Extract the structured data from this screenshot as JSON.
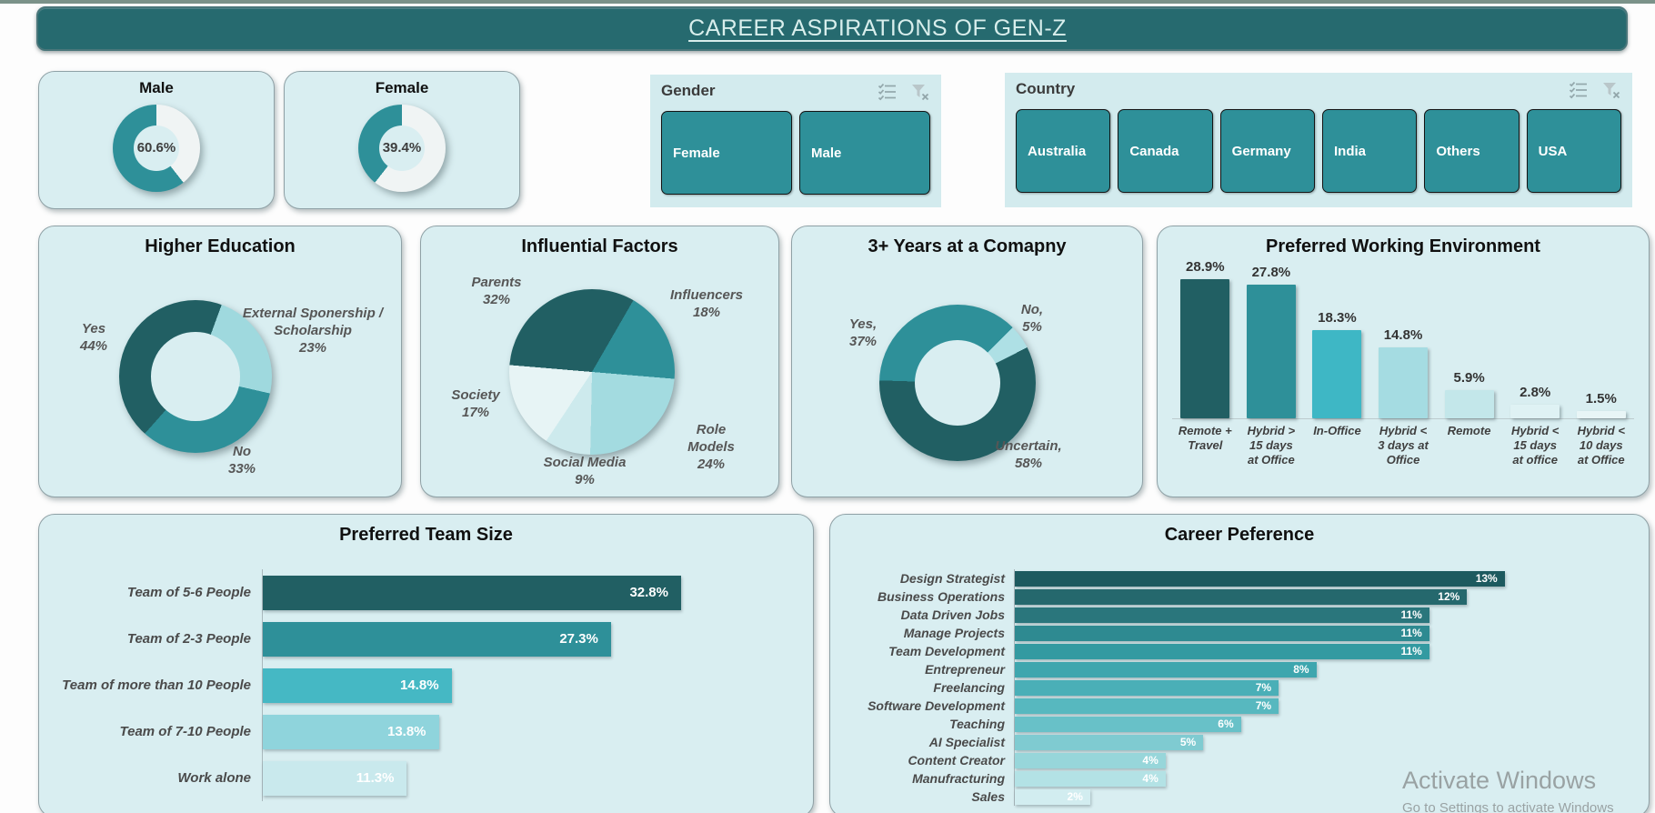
{
  "header": {
    "title": "CAREER ASPIRATIONS OF GEN-Z"
  },
  "colors": {
    "banner": "#266a6f",
    "card_bg": "#d9eef1",
    "slicer_bg": "#d3ebee",
    "button_teal": "#2e9099",
    "dark_teal": "#215f63",
    "cyan": "#3eb7c5",
    "light_teal": "#a5dce2"
  },
  "slicers": {
    "gender": {
      "label": "Gender",
      "items": [
        "Female",
        "Male"
      ],
      "icons": [
        "multi-select",
        "clear-filter"
      ]
    },
    "country": {
      "label": "Country",
      "items": [
        "Australia",
        "Canada",
        "Germany",
        "India",
        "Others",
        "USA"
      ],
      "icons": [
        "multi-select",
        "clear-filter"
      ]
    }
  },
  "watermark": {
    "line1": "Activate Windows",
    "line2": "Go to Settings to activate Windows"
  },
  "chart_data": [
    {
      "id": "male-gauge",
      "type": "donut",
      "title": "Male",
      "center_label": "60.6%",
      "hole": 0.53,
      "start": 0,
      "segments": [
        {
          "name": "Remainder",
          "value": 39.4,
          "color": "#f0f4f4"
        },
        {
          "name": "Male",
          "value": 60.6,
          "color": "#2e9099"
        }
      ]
    },
    {
      "id": "female-gauge",
      "type": "donut",
      "title": "Female",
      "center_label": "39.4%",
      "hole": 0.53,
      "start": 0,
      "segments": [
        {
          "name": "Remainder",
          "value": 60.6,
          "color": "#f0f4f4"
        },
        {
          "name": "Female",
          "value": 39.4,
          "color": "#2e9099"
        }
      ]
    },
    {
      "id": "higher-education",
      "type": "donut",
      "title": "Higher Education",
      "hole": 0.58,
      "start": 20,
      "segments": [
        {
          "name": "External Sponership / Scholarship",
          "value": 23,
          "color": "#9fd9de"
        },
        {
          "name": "No",
          "value": 33,
          "color": "#2e9099"
        },
        {
          "name": "Yes",
          "value": 44,
          "color": "#215f63"
        }
      ],
      "labels": [
        "Yes\n44%",
        "External Sponership /\nScholarship\n23%",
        "No\n33%"
      ]
    },
    {
      "id": "influential-factors",
      "type": "pie",
      "title": "Influential Factors",
      "start": 30,
      "segments": [
        {
          "name": "Influencers",
          "value": 18,
          "color": "#2e9099"
        },
        {
          "name": "Role Models",
          "value": 24,
          "color": "#a3dbe0"
        },
        {
          "name": "Social Media",
          "value": 9,
          "color": "#cdeaed"
        },
        {
          "name": "Society",
          "value": 17,
          "color": "#e7f4f5"
        },
        {
          "name": "Parents",
          "value": 32,
          "color": "#215f63"
        }
      ],
      "labels": [
        "Parents\n32%",
        "Influencers\n18%",
        "Society\n17%",
        "Social Media\n9%",
        "Role\nModels\n24%"
      ]
    },
    {
      "id": "three-years-at-company",
      "type": "donut",
      "title": "3+ Years at a Comapny",
      "hole": 0.55,
      "start": 45,
      "segments": [
        {
          "name": "No",
          "value": 5,
          "color": "#aee0e5"
        },
        {
          "name": "Uncertain",
          "value": 58,
          "color": "#215f63"
        },
        {
          "name": "Yes",
          "value": 37,
          "color": "#2e9099"
        }
      ],
      "labels": [
        "Yes,\n37%",
        "No,\n5%",
        "Uncertain,\n58%"
      ]
    },
    {
      "id": "preferred-working-environment",
      "type": "column",
      "title": "Preferred Working Environment",
      "ylim": [
        0,
        30
      ],
      "grid": false,
      "categories": [
        "Remote +\nTravel",
        "Hybrid >\n15 days\nat Office",
        "In-Office",
        "Hybrid <\n3 days at\nOffice",
        "Remote",
        "Hybrid <\n15 days\nat office",
        "Hybrid <\n10 days\nat Office"
      ],
      "values": [
        28.9,
        27.8,
        18.3,
        14.8,
        5.9,
        2.8,
        1.5
      ],
      "value_labels": [
        "28.9%",
        "27.8%",
        "18.3%",
        "14.8%",
        "5.9%",
        "2.8%",
        "1.5%"
      ],
      "colors": [
        "#215f63",
        "#2e9099",
        "#3eb7c5",
        "#a5dce2",
        "#c3e7ea",
        "#dff2f4",
        "#e8f5f6"
      ]
    },
    {
      "id": "preferred-team-size",
      "type": "hbar",
      "title": "Preferred Team Size",
      "categories": [
        "Team of 5-6 People",
        "Team of 2-3 People",
        "Team of more than 10 People",
        "Team of 7-10 People",
        "Work alone"
      ],
      "values": [
        32.8,
        27.3,
        14.8,
        13.8,
        11.3
      ],
      "value_labels": [
        "32.8%",
        "27.3%",
        "14.8%",
        "13.8%",
        "11.3%"
      ],
      "colors": [
        "#215f63",
        "#2e9099",
        "#45b8c4",
        "#8fd4dc",
        "#c9e9ed"
      ]
    },
    {
      "id": "career-preference",
      "type": "hbar",
      "title": "Career Peference",
      "categories": [
        "Design Strategist",
        "Business Operations",
        "Data Driven Jobs",
        "Manage Projects",
        "Team Development",
        "Entrepreneur",
        "Freelancing",
        "Software Development",
        "Teaching",
        "AI Specialist",
        "Content Creator",
        "Manufracturing",
        "Sales"
      ],
      "values": [
        13,
        12,
        11,
        11,
        11,
        8,
        7,
        7,
        6,
        5,
        4,
        4,
        2
      ],
      "value_labels": [
        "13%",
        "12%",
        "11%",
        "11%",
        "11%",
        "8%",
        "7%",
        "7%",
        "6%",
        "5%",
        "4%",
        "4%",
        "2%"
      ],
      "colors": [
        "#1d5a5f",
        "#25686d",
        "#2a767c",
        "#2e8a91",
        "#339aa1",
        "#3ea6ae",
        "#4aafb7",
        "#57b8bf",
        "#68c1c8",
        "#7fcbd1",
        "#97d6da",
        "#b3e2e5",
        "#d2edf0"
      ]
    }
  ]
}
